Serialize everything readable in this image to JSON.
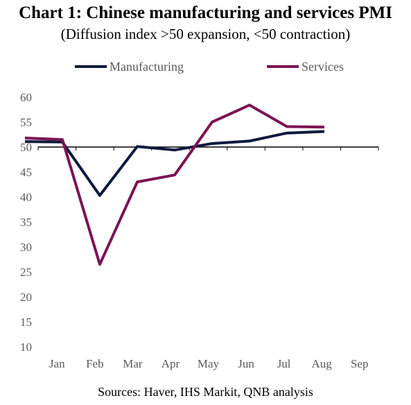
{
  "title": "Chart 1: Chinese manufacturing and services PMI",
  "subtitle": "(Diffusion index >50 expansion, <50 contraction)",
  "source": "Sources: Haver, IHS Markit, QNB analysis",
  "chart_data": {
    "type": "line",
    "categories": [
      "Jan",
      "Feb",
      "Mar",
      "Apr",
      "May",
      "Jun",
      "Jul",
      "Aug",
      "Sep"
    ],
    "ylim": [
      10,
      60
    ],
    "yticks": [
      10,
      15,
      20,
      25,
      30,
      35,
      40,
      45,
      50,
      55,
      60
    ],
    "x_axis_crosses_at": 50,
    "grid": false,
    "legend_position": "top",
    "series": [
      {
        "name": "Manufacturing",
        "color": "#0b1a3c",
        "values": [
          51.1,
          51.0,
          40.3,
          50.1,
          49.4,
          50.7,
          51.2,
          52.8,
          53.1
        ]
      },
      {
        "name": "Services",
        "color": "#7b1456",
        "values": [
          51.8,
          51.5,
          26.5,
          43.0,
          44.4,
          55.0,
          58.4,
          54.1,
          54.0
        ]
      }
    ],
    "x_values_note": ""
  }
}
